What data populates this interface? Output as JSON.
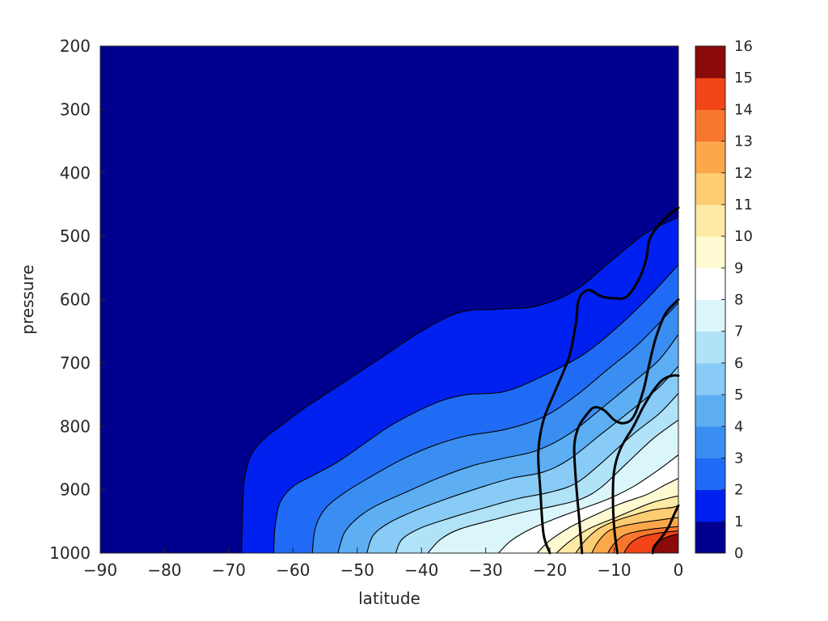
{
  "chart_data": {
    "type": "contour",
    "title": "",
    "xlabel": "latitude",
    "ylabel": "pressure",
    "xlim": [
      -90,
      0
    ],
    "ylim": [
      1000,
      200
    ],
    "y_reversed": true,
    "x_ticks": [
      "-90",
      "-80",
      "-70",
      "-60",
      "-50",
      "-40",
      "-30",
      "-20",
      "-10",
      "0"
    ],
    "y_ticks": [
      "200",
      "300",
      "400",
      "500",
      "600",
      "700",
      "800",
      "900",
      "1000"
    ],
    "colorbar": {
      "min": 0,
      "max": 16,
      "ticks": [
        "0",
        "1",
        "2",
        "3",
        "4",
        "5",
        "6",
        "7",
        "8",
        "9",
        "10",
        "11",
        "12",
        "13",
        "14",
        "15",
        "16"
      ],
      "colors": [
        "#00008F",
        "#0020F0",
        "#1F6BF5",
        "#3A8EF2",
        "#5DAEF3",
        "#88CBF6",
        "#B0E2F8",
        "#DAF6FB",
        "#FFFFFF",
        "#FFFAD2",
        "#FDEAA4",
        "#FDCD73",
        "#FCA84A",
        "#F8772E",
        "#F24519",
        "#8B0A0A"
      ]
    },
    "filled_contours": [
      {
        "level": 1,
        "boundary": [
          [
            -68,
            1000
          ],
          [
            -67.8,
            920
          ],
          [
            -67.5,
            880
          ],
          [
            -66.5,
            845
          ],
          [
            -64.5,
            820
          ],
          [
            -62,
            800
          ],
          [
            -58,
            770
          ],
          [
            -52,
            730
          ],
          [
            -46,
            690
          ],
          [
            -40,
            650
          ],
          [
            -34,
            620
          ],
          [
            -28,
            615
          ],
          [
            -22,
            610
          ],
          [
            -16,
            585
          ],
          [
            -10,
            535
          ],
          [
            -5,
            495
          ],
          [
            0,
            470
          ]
        ]
      },
      {
        "level": 2,
        "boundary": [
          [
            -63,
            1000
          ],
          [
            -62.8,
            960
          ],
          [
            -62,
            920
          ],
          [
            -60,
            895
          ],
          [
            -57,
            878
          ],
          [
            -53,
            856
          ],
          [
            -49,
            828
          ],
          [
            -45,
            800
          ],
          [
            -41,
            778
          ],
          [
            -37,
            760
          ],
          [
            -33,
            750
          ],
          [
            -27,
            745
          ],
          [
            -21,
            720
          ],
          [
            -15,
            688
          ],
          [
            -10,
            648
          ],
          [
            -5,
            600
          ],
          [
            0,
            545
          ]
        ]
      },
      {
        "level": 3,
        "boundary": [
          [
            -57,
            1000
          ],
          [
            -56.5,
            960
          ],
          [
            -55,
            930
          ],
          [
            -52,
            905
          ],
          [
            -48,
            880
          ],
          [
            -43,
            852
          ],
          [
            -38,
            830
          ],
          [
            -33,
            815
          ],
          [
            -27,
            805
          ],
          [
            -21,
            785
          ],
          [
            -16,
            752
          ],
          [
            -11,
            710
          ],
          [
            -6,
            668
          ],
          [
            0,
            605
          ]
        ]
      },
      {
        "level": 4,
        "boundary": [
          [
            -53,
            1000
          ],
          [
            -52,
            968
          ],
          [
            -50,
            945
          ],
          [
            -47,
            925
          ],
          [
            -42,
            902
          ],
          [
            -37,
            880
          ],
          [
            -32,
            862
          ],
          [
            -27,
            850
          ],
          [
            -22,
            838
          ],
          [
            -17,
            812
          ],
          [
            -12,
            772
          ],
          [
            -7,
            730
          ],
          [
            -3,
            695
          ],
          [
            0,
            655
          ]
        ]
      },
      {
        "level": 5,
        "boundary": [
          [
            -48.5,
            1000
          ],
          [
            -47.5,
            972
          ],
          [
            -45,
            952
          ],
          [
            -41,
            933
          ],
          [
            -36,
            914
          ],
          [
            -31,
            897
          ],
          [
            -26,
            882
          ],
          [
            -21,
            872
          ],
          [
            -17,
            852
          ],
          [
            -12,
            812
          ],
          [
            -7,
            772
          ],
          [
            -3,
            738
          ],
          [
            0,
            705
          ]
        ]
      },
      {
        "level": 6,
        "boundary": [
          [
            -44,
            1000
          ],
          [
            -43,
            978
          ],
          [
            -40,
            960
          ],
          [
            -35,
            943
          ],
          [
            -30,
            928
          ],
          [
            -25,
            914
          ],
          [
            -20,
            904
          ],
          [
            -16,
            890
          ],
          [
            -12,
            858
          ],
          [
            -7,
            812
          ],
          [
            -3,
            780
          ],
          [
            0,
            748
          ]
        ]
      },
      {
        "level": 7,
        "boundary": [
          [
            -39,
            1000
          ],
          [
            -37,
            978
          ],
          [
            -34,
            962
          ],
          [
            -29,
            948
          ],
          [
            -24,
            935
          ],
          [
            -19,
            925
          ],
          [
            -15,
            914
          ],
          [
            -12,
            896
          ],
          [
            -8,
            858
          ],
          [
            -4,
            820
          ],
          [
            0,
            790
          ]
        ]
      },
      {
        "level": 8,
        "boundary": [
          [
            -28,
            1000
          ],
          [
            -26,
            980
          ],
          [
            -23,
            962
          ],
          [
            -19,
            945
          ],
          [
            -15,
            930
          ],
          [
            -11,
            915
          ],
          [
            -7,
            895
          ],
          [
            -3,
            868
          ],
          [
            0,
            845
          ]
        ]
      },
      {
        "level": 9,
        "boundary": [
          [
            -22,
            1000
          ],
          [
            -20,
            980
          ],
          [
            -17,
            960
          ],
          [
            -13,
            940
          ],
          [
            -9,
            922
          ],
          [
            -5,
            908
          ],
          [
            -2,
            892
          ],
          [
            0,
            882
          ]
        ]
      },
      {
        "level": 10,
        "boundary": [
          [
            -19,
            1000
          ],
          [
            -17,
            982
          ],
          [
            -14,
            962
          ],
          [
            -10,
            945
          ],
          [
            -7,
            932
          ],
          [
            -4,
            920
          ],
          [
            -1,
            912
          ],
          [
            0,
            910
          ]
        ]
      },
      {
        "level": 11,
        "boundary": [
          [
            -16,
            1000
          ],
          [
            -14.5,
            980
          ],
          [
            -12.5,
            962
          ],
          [
            -10,
            950
          ],
          [
            -7,
            940
          ],
          [
            -4,
            932
          ],
          [
            -1,
            928
          ],
          [
            0,
            925
          ]
        ]
      },
      {
        "level": 12,
        "boundary": [
          [
            -13.5,
            1000
          ],
          [
            -12.5,
            982
          ],
          [
            -11,
            966
          ],
          [
            -9,
            958
          ],
          [
            -6,
            952
          ],
          [
            -3,
            948
          ],
          [
            -1,
            945
          ],
          [
            0,
            944
          ]
        ]
      },
      {
        "level": 13,
        "boundary": [
          [
            -11,
            1000
          ],
          [
            -10,
            985
          ],
          [
            -8.5,
            972
          ],
          [
            -6.5,
            966
          ],
          [
            -4,
            962
          ],
          [
            -2,
            960
          ],
          [
            0,
            958
          ]
        ]
      },
      {
        "level": 14,
        "boundary": [
          [
            -8.5,
            1000
          ],
          [
            -7.5,
            985
          ],
          [
            -6,
            975
          ],
          [
            -4,
            970
          ],
          [
            -2,
            967
          ],
          [
            0,
            965
          ]
        ]
      },
      {
        "level": 15,
        "boundary": [
          [
            -4,
            1000
          ],
          [
            -3.5,
            988
          ],
          [
            -2.5,
            978
          ],
          [
            -1,
            972
          ],
          [
            0,
            970
          ]
        ]
      }
    ],
    "thick_lines": [
      {
        "points": [
          [
            -20,
            1000
          ],
          [
            -21,
            970
          ],
          [
            -21.5,
            900
          ],
          [
            -21.8,
            840
          ],
          [
            -21,
            790
          ],
          [
            -19,
            740
          ],
          [
            -17,
            690
          ],
          [
            -16,
            640
          ],
          [
            -15.5,
            600
          ],
          [
            -14,
            585
          ],
          [
            -12,
            595
          ],
          [
            -10,
            598
          ],
          [
            -8,
            595
          ],
          [
            -6,
            565
          ],
          [
            -5,
            535
          ],
          [
            -4.5,
            505
          ],
          [
            -3,
            482
          ],
          [
            -1,
            462
          ],
          [
            0,
            455
          ]
        ]
      },
      {
        "points": [
          [
            -15,
            1000
          ],
          [
            -15.5,
            940
          ],
          [
            -16,
            880
          ],
          [
            -16.2,
            830
          ],
          [
            -15.5,
            800
          ],
          [
            -14,
            778
          ],
          [
            -13,
            770
          ],
          [
            -11.5,
            775
          ],
          [
            -10,
            790
          ],
          [
            -8.5,
            795
          ],
          [
            -7,
            785
          ],
          [
            -5.5,
            745
          ],
          [
            -4.5,
            700
          ],
          [
            -3.5,
            660
          ],
          [
            -2,
            622
          ],
          [
            0,
            600
          ]
        ]
      },
      {
        "points": [
          [
            -9.5,
            1000
          ],
          [
            -10,
            960
          ],
          [
            -10.2,
            910
          ],
          [
            -10,
            870
          ],
          [
            -9,
            835
          ],
          [
            -7,
            800
          ],
          [
            -5.5,
            770
          ],
          [
            -4,
            745
          ],
          [
            -2.5,
            727
          ],
          [
            -1,
            720
          ],
          [
            0,
            720
          ]
        ]
      },
      {
        "points": [
          [
            -4,
            1000
          ],
          [
            -3.8,
            990
          ],
          [
            -2.6,
            975
          ],
          [
            -1.5,
            958
          ],
          [
            -0.7,
            940
          ],
          [
            0,
            925
          ]
        ]
      }
    ]
  }
}
